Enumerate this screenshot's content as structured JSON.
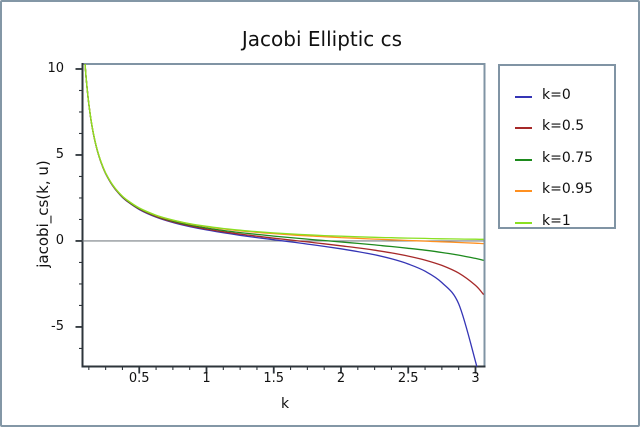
{
  "figure": {
    "title": "Jacobi Elliptic cs"
  },
  "colors": {
    "background": "#ffffff",
    "outer_border": "#8397a6",
    "frame_dark": "#2e353b",
    "frame_light": "#8094a4",
    "zero_line": "#7a8186",
    "text": "#1a1a1a"
  },
  "chart_data": {
    "type": "line",
    "title": "Jacobi Elliptic cs",
    "xlabel": "k",
    "ylabel": "jacobi_cs(k, u)",
    "xlim": [
      0.078,
      3.067
    ],
    "ylim": [
      -7.3,
      10.29
    ],
    "grid": false,
    "zero_line": true,
    "legend_position": "outside-right",
    "x_minor_step": 0.125,
    "y_minor_step": 1.25,
    "x_ticks": [
      {
        "value": 0.5,
        "label": "0.5"
      },
      {
        "value": 1,
        "label": "1"
      },
      {
        "value": 1.5,
        "label": "1.5"
      },
      {
        "value": 2,
        "label": "2"
      },
      {
        "value": 2.5,
        "label": "2.5"
      },
      {
        "value": 3,
        "label": "3"
      }
    ],
    "y_ticks": [
      {
        "value": -5,
        "label": "-5"
      },
      {
        "value": 0,
        "label": "0"
      },
      {
        "value": 5,
        "label": "5"
      },
      {
        "value": 10,
        "label": "10"
      }
    ],
    "series": [
      {
        "name": "k=0",
        "color": "#3535b5",
        "points": [
          [
            0.096,
            10.385
          ],
          [
            0.105,
            9.489
          ],
          [
            0.115,
            8.657
          ],
          [
            0.125,
            7.958
          ],
          [
            0.14,
            7.096
          ],
          [
            0.16,
            6.197
          ],
          [
            0.18,
            5.496
          ],
          [
            0.2,
            4.933
          ],
          [
            0.225,
            4.369
          ],
          [
            0.25,
            3.916
          ],
          [
            0.3,
            3.233
          ],
          [
            0.35,
            2.74
          ],
          [
            0.4,
            2.365
          ],
          [
            0.5,
            1.83
          ],
          [
            0.625,
            1.386
          ],
          [
            0.75,
            1.073
          ],
          [
            0.875,
            0.835
          ],
          [
            1.0,
            0.642
          ],
          [
            1.125,
            0.478
          ],
          [
            1.25,
            0.332
          ],
          [
            1.375,
            0.198
          ],
          [
            1.5,
            0.071
          ],
          [
            1.625,
            -0.054
          ],
          [
            1.75,
            -0.181
          ],
          [
            1.875,
            -0.314
          ],
          [
            2.0,
            -0.458
          ],
          [
            2.125,
            -0.619
          ],
          [
            2.25,
            -0.807
          ],
          [
            2.375,
            -1.038
          ],
          [
            2.5,
            -1.339
          ],
          [
            2.625,
            -1.76
          ],
          [
            2.75,
            -2.422
          ],
          [
            2.875,
            -3.662
          ],
          [
            3.0,
            -7.015
          ],
          [
            3.01,
            -7.45
          ]
        ]
      },
      {
        "name": "k=0.5",
        "color": "#a62929",
        "points": [
          [
            0.096,
            10.389
          ],
          [
            0.105,
            9.493
          ],
          [
            0.115,
            8.662
          ],
          [
            0.125,
            7.964
          ],
          [
            0.14,
            7.102
          ],
          [
            0.16,
            6.203
          ],
          [
            0.18,
            5.503
          ],
          [
            0.2,
            4.942
          ],
          [
            0.225,
            4.379
          ],
          [
            0.25,
            3.927
          ],
          [
            0.3,
            3.246
          ],
          [
            0.35,
            2.754
          ],
          [
            0.4,
            2.382
          ],
          [
            0.5,
            1.852
          ],
          [
            0.625,
            1.414
          ],
          [
            0.75,
            1.108
          ],
          [
            0.875,
            0.876
          ],
          [
            1.0,
            0.691
          ],
          [
            1.125,
            0.536
          ],
          [
            1.25,
            0.4
          ],
          [
            1.375,
            0.278
          ],
          [
            1.5,
            0.163
          ],
          [
            1.625,
            0.053
          ],
          [
            1.75,
            -0.056
          ],
          [
            1.875,
            -0.166
          ],
          [
            2.0,
            -0.28
          ],
          [
            2.125,
            -0.403
          ],
          [
            2.25,
            -0.54
          ],
          [
            2.375,
            -0.696
          ],
          [
            2.5,
            -0.882
          ],
          [
            2.625,
            -1.115
          ],
          [
            2.75,
            -1.424
          ],
          [
            2.875,
            -1.868
          ],
          [
            3.0,
            -2.583
          ],
          [
            3.06,
            -3.12
          ]
        ]
      },
      {
        "name": "k=0.75",
        "color": "#1d8a1d",
        "points": [
          [
            0.096,
            10.394
          ],
          [
            0.105,
            9.499
          ],
          [
            0.115,
            8.668
          ],
          [
            0.125,
            7.97
          ],
          [
            0.14,
            7.109
          ],
          [
            0.16,
            6.212
          ],
          [
            0.18,
            5.512
          ],
          [
            0.2,
            4.952
          ],
          [
            0.225,
            4.391
          ],
          [
            0.25,
            3.94
          ],
          [
            0.3,
            3.261
          ],
          [
            0.35,
            2.772
          ],
          [
            0.4,
            2.404
          ],
          [
            0.5,
            1.881
          ],
          [
            0.625,
            1.449
          ],
          [
            0.75,
            1.152
          ],
          [
            0.875,
            0.93
          ],
          [
            1.0,
            0.755
          ],
          [
            1.125,
            0.611
          ],
          [
            1.25,
            0.489
          ],
          [
            1.375,
            0.381
          ],
          [
            1.5,
            0.283
          ],
          [
            1.625,
            0.193
          ],
          [
            1.75,
            0.107
          ],
          [
            1.875,
            0.024
          ],
          [
            2.0,
            -0.059
          ],
          [
            2.125,
            -0.143
          ],
          [
            2.25,
            -0.231
          ],
          [
            2.375,
            -0.324
          ],
          [
            2.5,
            -0.425
          ],
          [
            2.625,
            -0.538
          ],
          [
            2.75,
            -0.669
          ],
          [
            2.875,
            -0.825
          ],
          [
            3.0,
            -1.017
          ],
          [
            3.06,
            -1.128
          ]
        ]
      },
      {
        "name": "k=0.95",
        "color": "#ff9020",
        "points": [
          [
            0.096,
            10.399
          ],
          [
            0.105,
            9.505
          ],
          [
            0.115,
            8.675
          ],
          [
            0.125,
            7.977
          ],
          [
            0.14,
            7.117
          ],
          [
            0.16,
            6.221
          ],
          [
            0.18,
            5.523
          ],
          [
            0.2,
            4.963
          ],
          [
            0.225,
            4.403
          ],
          [
            0.25,
            3.954
          ],
          [
            0.3,
            3.278
          ],
          [
            0.35,
            2.793
          ],
          [
            0.4,
            2.427
          ],
          [
            0.5,
            1.911
          ],
          [
            0.625,
            1.479
          ],
          [
            0.75,
            1.202
          ],
          [
            0.875,
            0.987
          ],
          [
            1.0,
            0.829
          ],
          [
            1.125,
            0.699
          ],
          [
            1.25,
            0.593
          ],
          [
            1.375,
            0.503
          ],
          [
            1.5,
            0.426
          ],
          [
            1.625,
            0.359
          ],
          [
            1.75,
            0.299
          ],
          [
            1.875,
            0.245
          ],
          [
            2.0,
            0.196
          ],
          [
            2.125,
            0.151
          ],
          [
            2.25,
            0.108
          ],
          [
            2.375,
            0.068
          ],
          [
            2.5,
            0.028
          ],
          [
            2.625,
            -0.011
          ],
          [
            2.75,
            -0.05
          ],
          [
            2.875,
            -0.09
          ],
          [
            3.0,
            -0.132
          ],
          [
            3.06,
            -0.153
          ]
        ]
      },
      {
        "name": "k=1",
        "color": "#8ae022",
        "points": [
          [
            0.096,
            10.401
          ],
          [
            0.105,
            9.506
          ],
          [
            0.115,
            8.677
          ],
          [
            0.125,
            7.979
          ],
          [
            0.14,
            7.12
          ],
          [
            0.16,
            6.223
          ],
          [
            0.18,
            5.526
          ],
          [
            0.2,
            4.967
          ],
          [
            0.225,
            4.407
          ],
          [
            0.25,
            3.958
          ],
          [
            0.3,
            3.284
          ],
          [
            0.35,
            2.8
          ],
          [
            0.4,
            2.435
          ],
          [
            0.5,
            1.919
          ],
          [
            0.625,
            1.5
          ],
          [
            0.75,
            1.216
          ],
          [
            0.875,
            1.009
          ],
          [
            1.0,
            0.851
          ],
          [
            1.125,
            0.726
          ],
          [
            1.25,
            0.624
          ],
          [
            1.375,
            0.54
          ],
          [
            1.5,
            0.47
          ],
          [
            1.625,
            0.41
          ],
          [
            1.75,
            0.358
          ],
          [
            1.875,
            0.314
          ],
          [
            2.0,
            0.276
          ],
          [
            2.125,
            0.242
          ],
          [
            2.25,
            0.213
          ],
          [
            2.375,
            0.188
          ],
          [
            2.5,
            0.165
          ],
          [
            2.625,
            0.146
          ],
          [
            2.75,
            0.128
          ],
          [
            2.875,
            0.113
          ],
          [
            3.0,
            0.1
          ],
          [
            3.06,
            0.094
          ]
        ]
      }
    ]
  }
}
